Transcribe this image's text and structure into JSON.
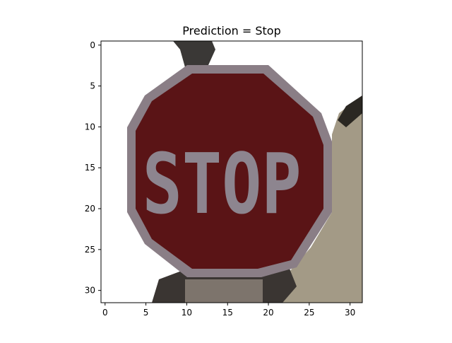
{
  "chart_data": {
    "type": "heatmap",
    "title": "Prediction = Stop",
    "xlabel": "",
    "ylabel": "",
    "xlim": [
      -0.5,
      31.5
    ],
    "ylim": [
      31.5,
      -0.5
    ],
    "grid": false,
    "x_ticks": [
      0,
      5,
      10,
      15,
      20,
      25,
      30
    ],
    "y_ticks": [
      0,
      5,
      10,
      15,
      20,
      25,
      30
    ],
    "image_size": [
      32,
      32
    ],
    "image_content": "stop-sign-photo",
    "sign_text": "STOP",
    "colors": {
      "sign_red": "#5a1416",
      "sign_border": "#8a7e86",
      "letters": "#8d858f",
      "road_gray": "#a39a86",
      "shadow": "#2a2a2a",
      "sky": "#ffffff"
    }
  }
}
